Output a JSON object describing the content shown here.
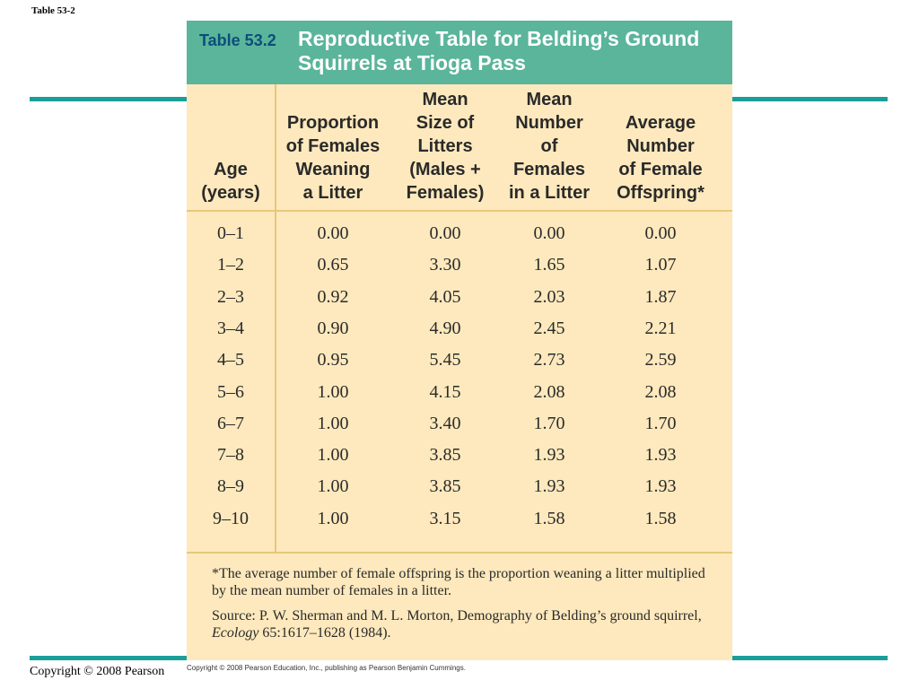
{
  "slide_label": "Table 53-2",
  "copyright_left": "Copyright © 2008 Pearson",
  "copyright_small": "Copyright © 2008 Pearson Education, Inc., publishing as Pearson Benjamin Cummings.",
  "table": {
    "number": "Table 53.2",
    "title": "Reproductive Table for Belding’s Ground Squirrels at Tioga Pass",
    "headers": [
      "Age\n(years)",
      "Proportion\nof Females\nWeaning\na Litter",
      "Mean\nSize of\nLitters\n(Males +\nFemales)",
      "Mean\nNumber\nof\nFemales\nin a Litter",
      "Average\nNumber\nof Female\nOffspring*"
    ],
    "rows": [
      [
        "0–1",
        "0.00",
        "0.00",
        "0.00",
        "0.00"
      ],
      [
        "1–2",
        "0.65",
        "3.30",
        "1.65",
        "1.07"
      ],
      [
        "2–3",
        "0.92",
        "4.05",
        "2.03",
        "1.87"
      ],
      [
        "3–4",
        "0.90",
        "4.90",
        "2.45",
        "2.21"
      ],
      [
        "4–5",
        "0.95",
        "5.45",
        "2.73",
        "2.59"
      ],
      [
        "5–6",
        "1.00",
        "4.15",
        "2.08",
        "2.08"
      ],
      [
        "6–7",
        "1.00",
        "3.40",
        "1.70",
        "1.70"
      ],
      [
        "7–8",
        "1.00",
        "3.85",
        "1.93",
        "1.93"
      ],
      [
        "8–9",
        "1.00",
        "3.85",
        "1.93",
        "1.93"
      ],
      [
        "9–10",
        "1.00",
        "3.15",
        "1.58",
        "1.58"
      ]
    ],
    "footnote": "*The average number of female offspring is the proportion weaning a litter multiplied by the mean number of females in a litter.",
    "source_prefix": "Source: P. W. Sherman and M. L. Morton, Demography of Belding’s ground squirrel, ",
    "source_journal": "Ecology",
    "source_suffix": " 65:1617–1628 (1984)."
  },
  "colors": {
    "header_band": "#5ab59a",
    "table_body": "#fde9bd",
    "table_number": "#0d4e7a",
    "slide_rules": "#1b9e9a"
  }
}
